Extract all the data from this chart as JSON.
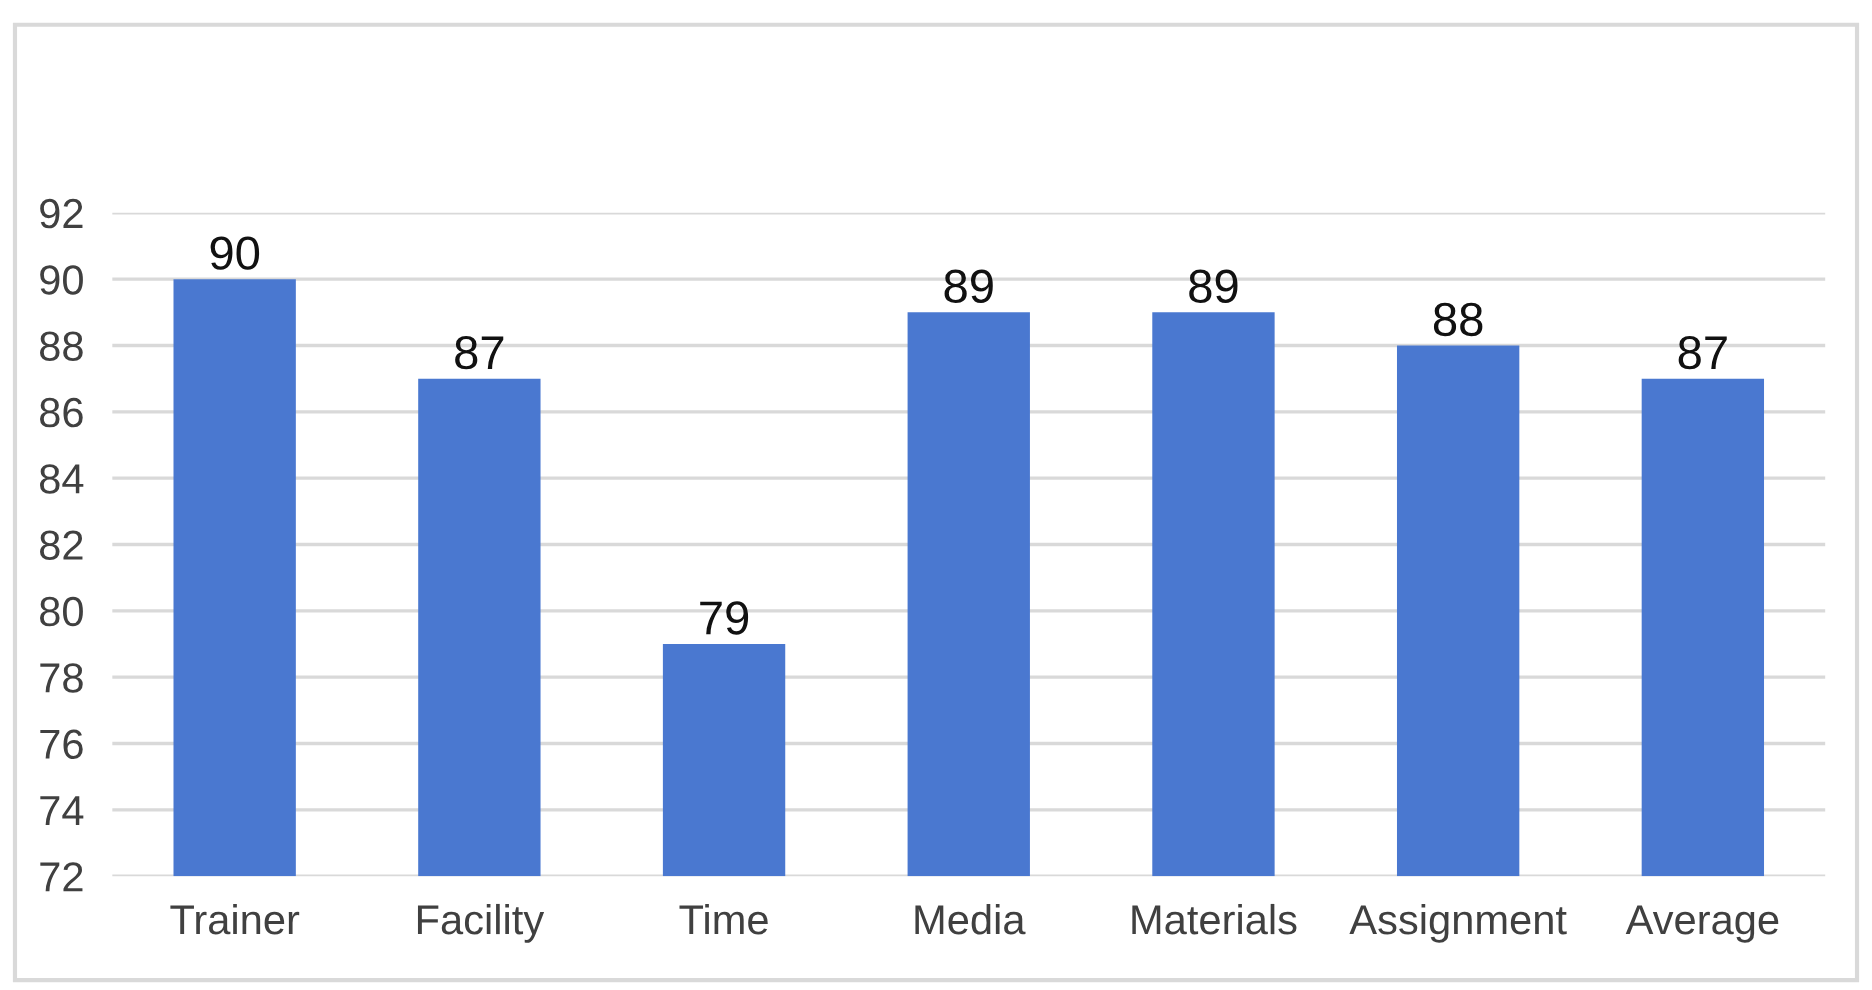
{
  "chart_data": {
    "type": "bar",
    "categories": [
      "Trainer",
      "Facility",
      "Time",
      "Media",
      "Materials",
      "Assignment",
      "Average"
    ],
    "values": [
      90,
      87,
      79,
      89,
      89,
      88,
      87
    ],
    "color": "#4a78d0",
    "ylim": [
      72,
      92
    ],
    "yticks": [
      72,
      74,
      76,
      78,
      80,
      82,
      84,
      86,
      88,
      90,
      92
    ],
    "grid": "y",
    "data_labels": true
  }
}
